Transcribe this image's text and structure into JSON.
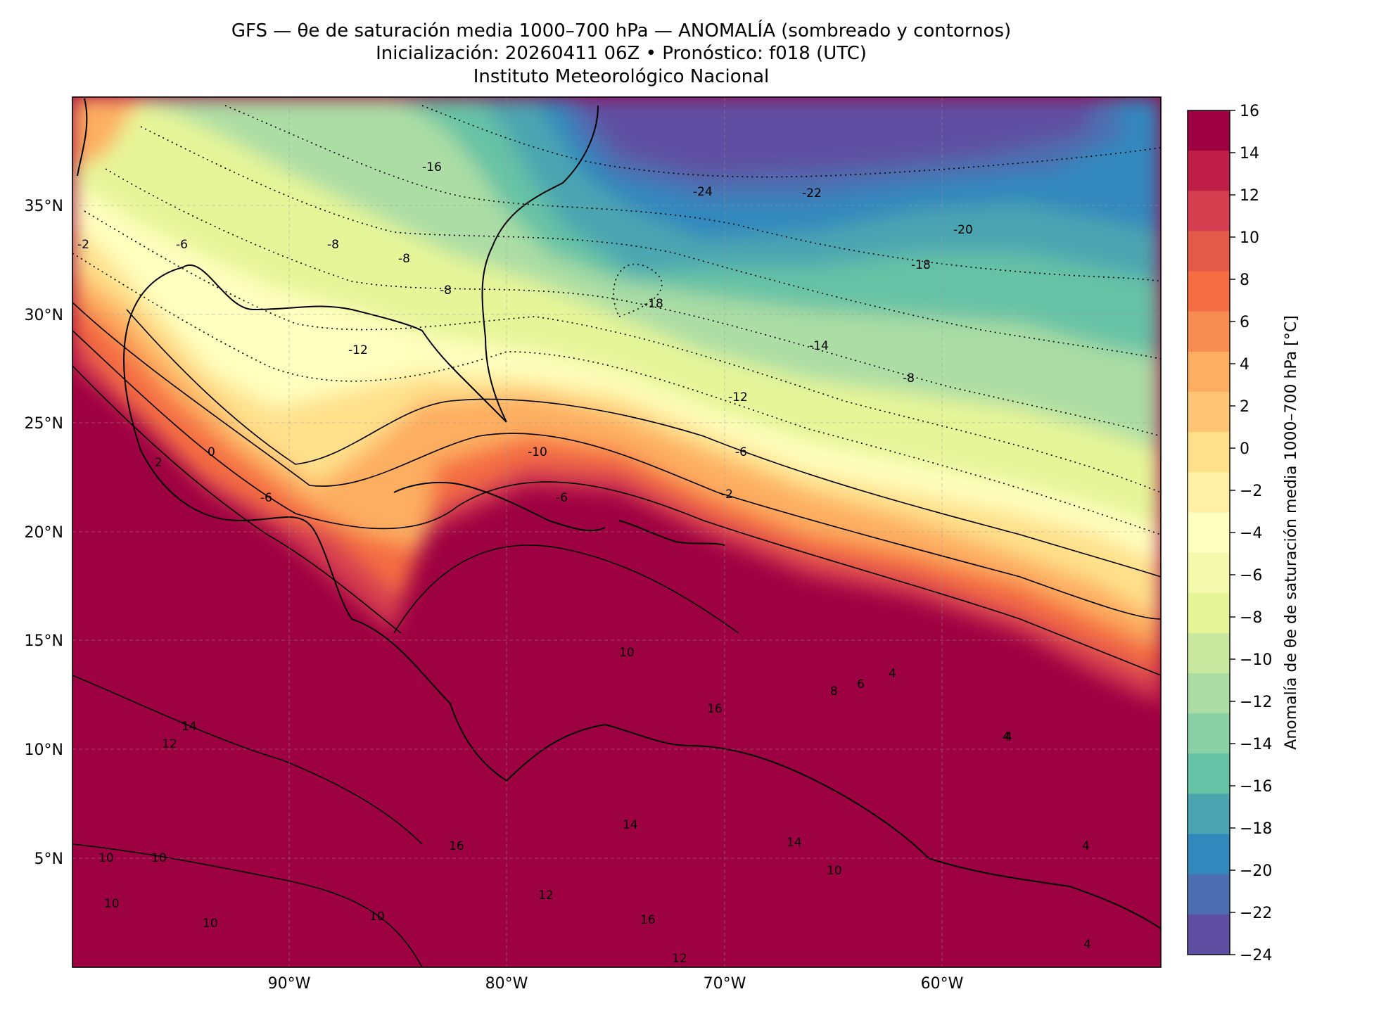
{
  "header": {
    "title_line1": "GFS — θe de saturación media 1000–700 hPa — ANOMALÍA (sombreado y contornos)",
    "title_line2": "Inicialización: 20260411 06Z   •   Pronóstico: f018 (UTC)",
    "title_line3": "Instituto Meteorológico Nacional"
  },
  "map": {
    "lat_ticks": [
      "35°N",
      "30°N",
      "25°N",
      "20°N",
      "15°N",
      "10°N",
      "5°N"
    ],
    "lon_ticks": [
      "90°W",
      "80°W",
      "70°W",
      "60°W"
    ],
    "contour_labels": [
      "-16",
      "-24",
      "-22",
      "-20",
      "-18",
      "-18",
      "-14",
      "-12",
      "-8",
      "-6",
      "-8",
      "-8",
      "-8",
      "-6",
      "-12",
      "-2",
      "-10",
      "-6",
      "-2",
      "0",
      "2",
      "-6",
      "10",
      "8",
      "6",
      "4",
      "4",
      "14",
      "12",
      "16",
      "10",
      "10",
      "10",
      "10",
      "10",
      "12",
      "16",
      "14",
      "16",
      "14",
      "10",
      "12",
      "4",
      "4",
      "4"
    ]
  },
  "colorbar": {
    "label": "Anomalía de θe de saturación media 1000–700 hPa [°C]",
    "ticks": [
      "16",
      "14",
      "12",
      "10",
      "8",
      "6",
      "4",
      "2",
      "0",
      "−2",
      "−4",
      "−6",
      "−8",
      "−10",
      "−12",
      "−14",
      "−16",
      "−18",
      "−20",
      "−22",
      "−24"
    ],
    "colors": [
      "#9e0142",
      "#be1e48",
      "#d53e4f",
      "#e45a49",
      "#f46d43",
      "#f88d52",
      "#fdae61",
      "#fdc574",
      "#fee08b",
      "#fff0a6",
      "#ffffbf",
      "#f3faad",
      "#e6f598",
      "#c7e89e",
      "#abdda4",
      "#89d0a4",
      "#66c2a5",
      "#4ba5b1",
      "#3288bd",
      "#4d6eb0",
      "#5e4fa2"
    ]
  }
}
